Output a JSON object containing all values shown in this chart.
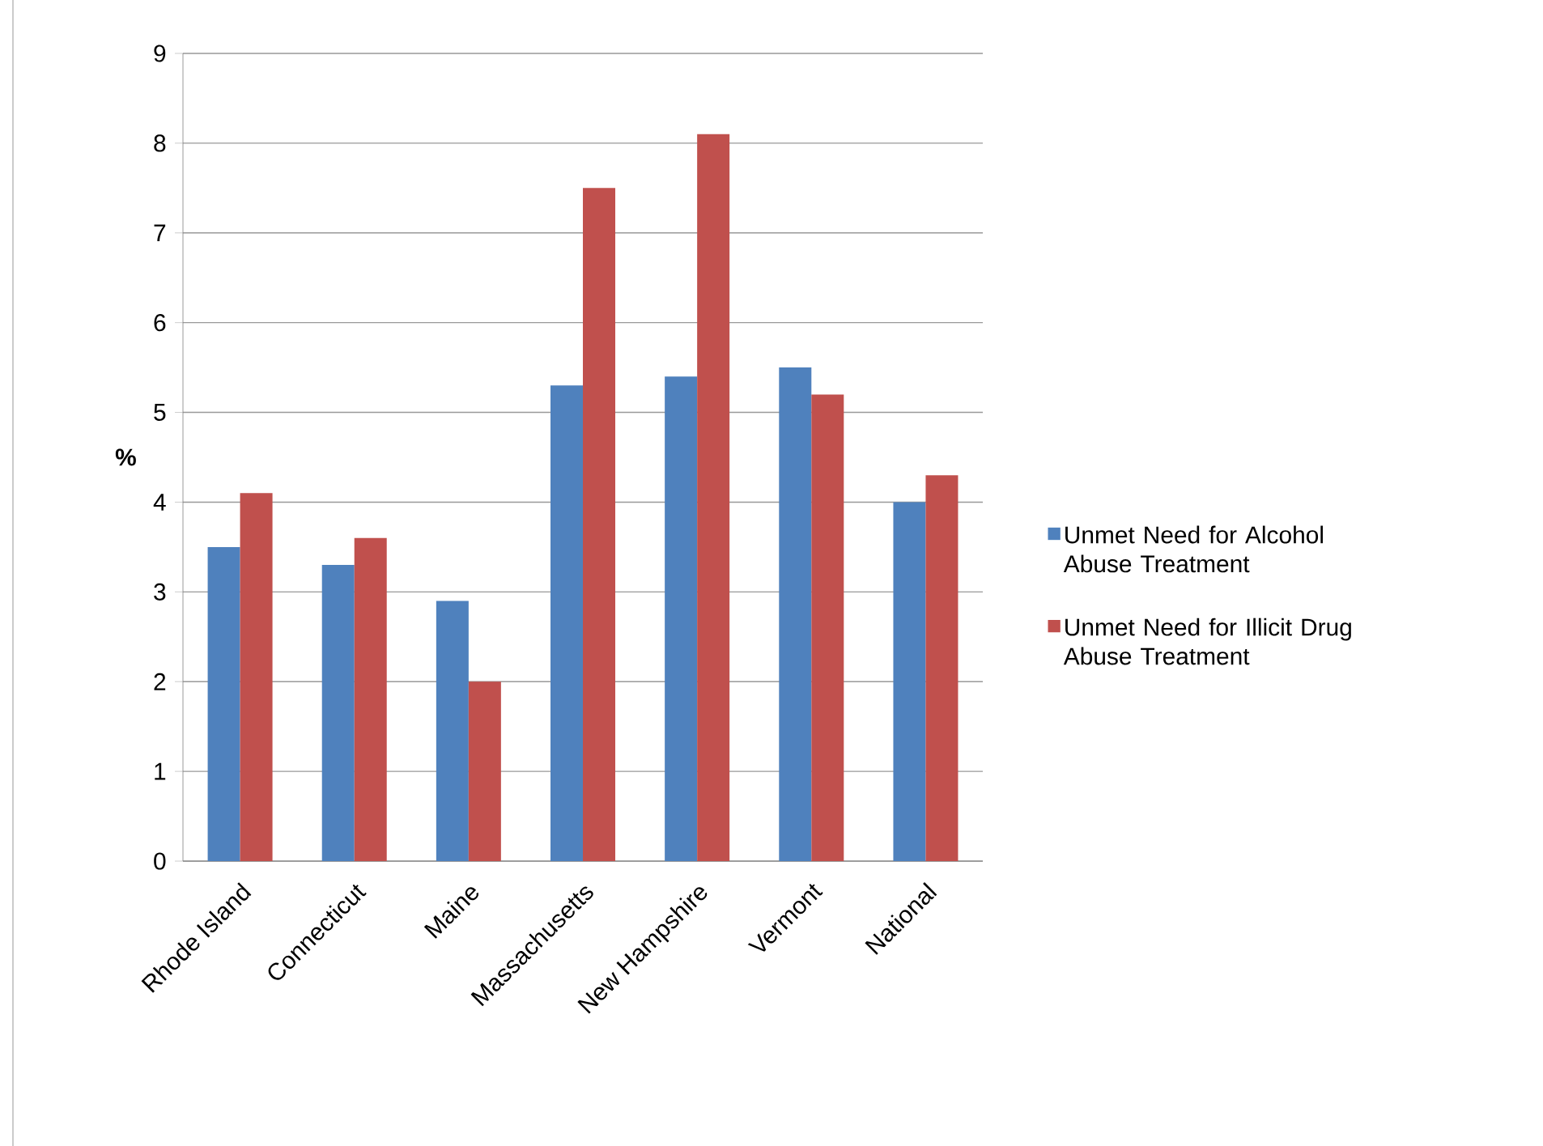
{
  "chart_data": {
    "type": "bar",
    "ylabel": "%",
    "categories": [
      "Rhode Island",
      "Connecticut",
      "Maine",
      "Massachusetts",
      "New Hampshire",
      "Vermont",
      "National"
    ],
    "series": [
      {
        "name": "Unmet Need for Alcohol Abuse Treatment",
        "color": "#4f81bd",
        "values": [
          3.5,
          3.3,
          2.9,
          5.3,
          5.4,
          5.5,
          4.0
        ]
      },
      {
        "name": "Unmet Need for Illicit Drug Abuse Treatment",
        "color": "#c0504d",
        "values": [
          4.1,
          3.6,
          2.0,
          7.5,
          8.1,
          5.2,
          4.3
        ]
      }
    ],
    "ylim": [
      0,
      9
    ],
    "yticks": [
      0,
      1,
      2,
      3,
      4,
      5,
      6,
      7,
      8,
      9
    ],
    "grid": "y",
    "legend": "right"
  }
}
